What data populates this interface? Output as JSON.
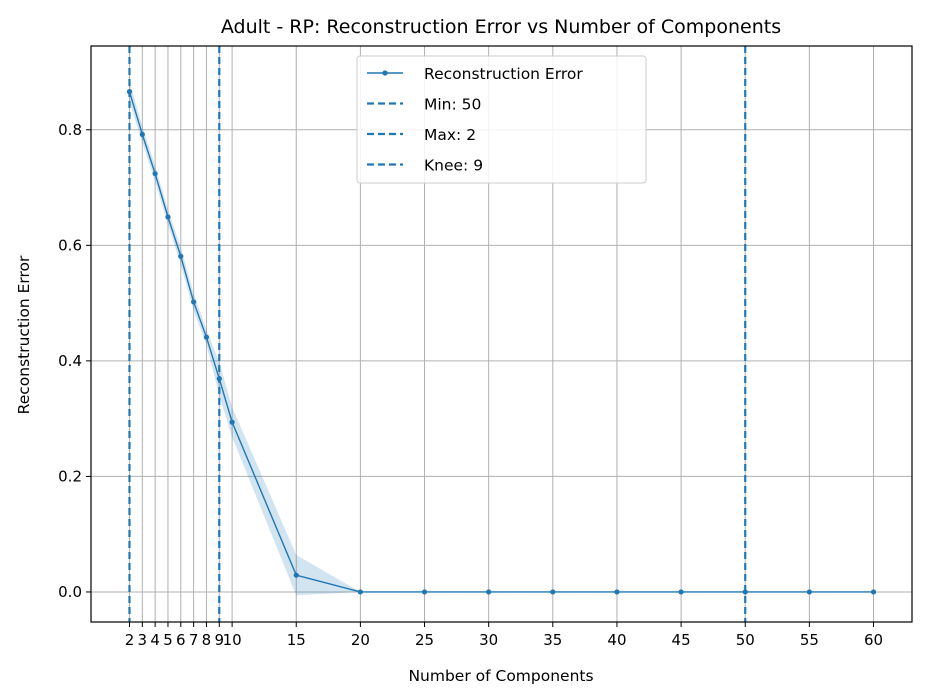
{
  "chart_data": {
    "type": "line",
    "title": "Adult - RP: Reconstruction Error vs Number of Components",
    "xlabel": "Number of Components",
    "ylabel": "Reconstruction Error",
    "xlim": [
      -1,
      63
    ],
    "ylim": [
      -0.052,
      0.945
    ],
    "xticks": [
      2,
      3,
      4,
      5,
      6,
      7,
      8,
      9,
      10,
      15,
      20,
      25,
      30,
      35,
      40,
      45,
      50,
      55,
      60
    ],
    "xtick_labels": [
      "2",
      "3",
      "4",
      "5",
      "6",
      "7",
      "8",
      "9",
      "10",
      "15",
      "20",
      "25",
      "30",
      "35",
      "40",
      "45",
      "50",
      "55",
      "60"
    ],
    "yticks": [
      0.0,
      0.2,
      0.4,
      0.6,
      0.8
    ],
    "ytick_labels": [
      "0.0",
      "0.2",
      "0.4",
      "0.6",
      "0.8"
    ],
    "grid": true,
    "legend_position": "top-center",
    "series": [
      {
        "name": "Reconstruction Error",
        "x": [
          2,
          3,
          4,
          5,
          6,
          7,
          8,
          9,
          10,
          15,
          20,
          25,
          30,
          35,
          40,
          45,
          50,
          55,
          60
        ],
        "y": [
          0.866,
          0.792,
          0.724,
          0.649,
          0.581,
          0.502,
          0.441,
          0.369,
          0.294,
          0.029,
          0.0,
          0.0,
          0.0,
          0.0,
          0.0,
          0.0,
          0.0,
          0.0,
          0.0
        ],
        "y_lower": [
          0.848,
          0.778,
          0.71,
          0.636,
          0.566,
          0.487,
          0.428,
          0.34,
          0.268,
          -0.006,
          0.0,
          0.0,
          0.0,
          0.0,
          0.0,
          0.0,
          0.0,
          0.0,
          0.0
        ],
        "y_upper": [
          0.884,
          0.806,
          0.738,
          0.662,
          0.596,
          0.517,
          0.454,
          0.398,
          0.32,
          0.064,
          0.0,
          0.0,
          0.0,
          0.0,
          0.0,
          0.0,
          0.0,
          0.0,
          0.0
        ],
        "color": "#1f77b4"
      }
    ],
    "vlines": [
      {
        "name": "Min: 50",
        "x": 50,
        "color": "#1f77b4"
      },
      {
        "name": "Max: 2",
        "x": 2,
        "color": "#1f77b4"
      },
      {
        "name": "Knee: 9",
        "x": 9,
        "color": "#1f77b4"
      }
    ],
    "band_color": "#1f77b4"
  }
}
